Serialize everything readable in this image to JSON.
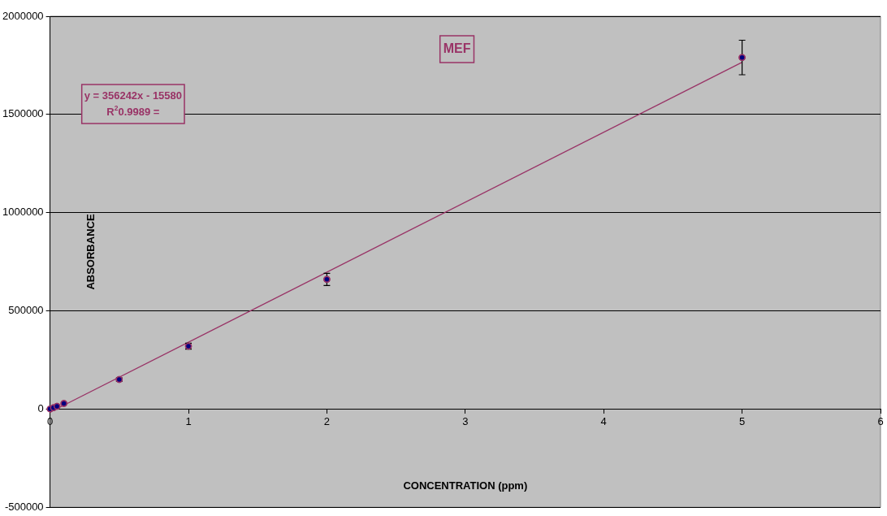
{
  "chart_data": {
    "type": "scatter",
    "title": "MEF",
    "xlabel": "CONCENTRATION (ppm)",
    "ylabel": "ABSORBANCE",
    "annotations": [
      "y = 356242x - 15580",
      "R$^{2}$0.9989 ="
    ],
    "series": [
      {
        "marker": "circle",
        "color": "#000080",
        "x": [
          0,
          0.025,
          0.05,
          0.1,
          0.5,
          1,
          2,
          5
        ],
        "values": [
          0,
          7000,
          14000,
          28000,
          150000,
          320000,
          660000,
          1790000
        ],
        "errors": [
          null,
          null,
          null,
          null,
          8000,
          15000,
          31000,
          88000
        ]
      },
      {
        "type": "line",
        "marker": "none",
        "color": "#993366",
        "x": [
          0,
          5
        ],
        "values": [
          -16000,
          1766000
        ]
      }
    ],
    "xlim": [
      0,
      6
    ],
    "xticks": [
      0,
      1,
      2,
      3,
      4,
      5,
      6
    ],
    "ylim": [
      -500000,
      2000000
    ],
    "yticks": [
      -500000,
      0,
      500000,
      1000000,
      1500000,
      2000000
    ],
    "grid": "y",
    "legend": false,
    "line_style": "solid"
  }
}
